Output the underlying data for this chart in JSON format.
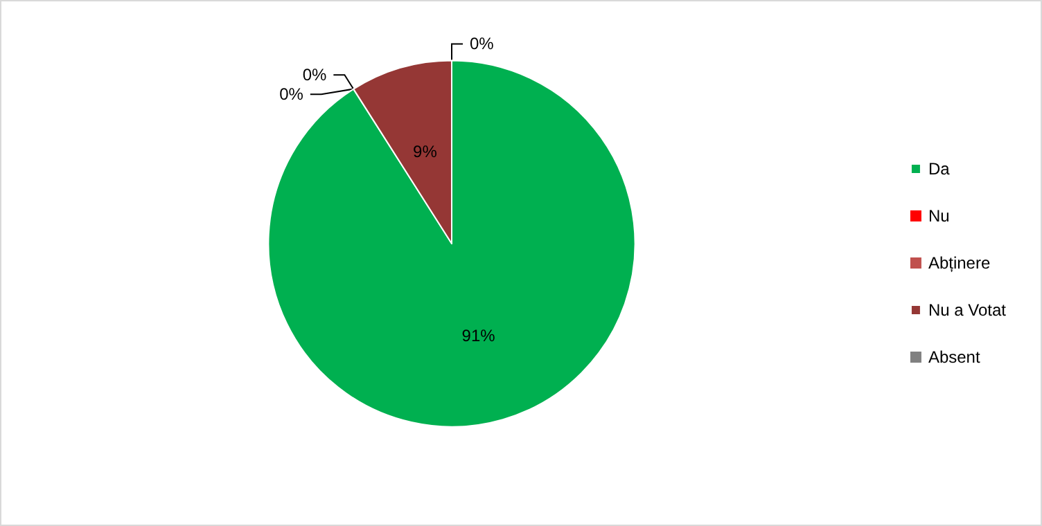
{
  "chart_data": {
    "type": "pie",
    "categories": [
      "Da",
      "Nu",
      "Abținere",
      "Nu a Votat",
      "Absent"
    ],
    "values": [
      91,
      0,
      0,
      9,
      0
    ],
    "colors": [
      "#00b050",
      "#ff0000",
      "#c0504d",
      "#953735",
      "#808080"
    ],
    "value_labels": [
      "91%",
      "0%",
      "0%",
      "9%",
      "0%"
    ],
    "legend": "right"
  }
}
